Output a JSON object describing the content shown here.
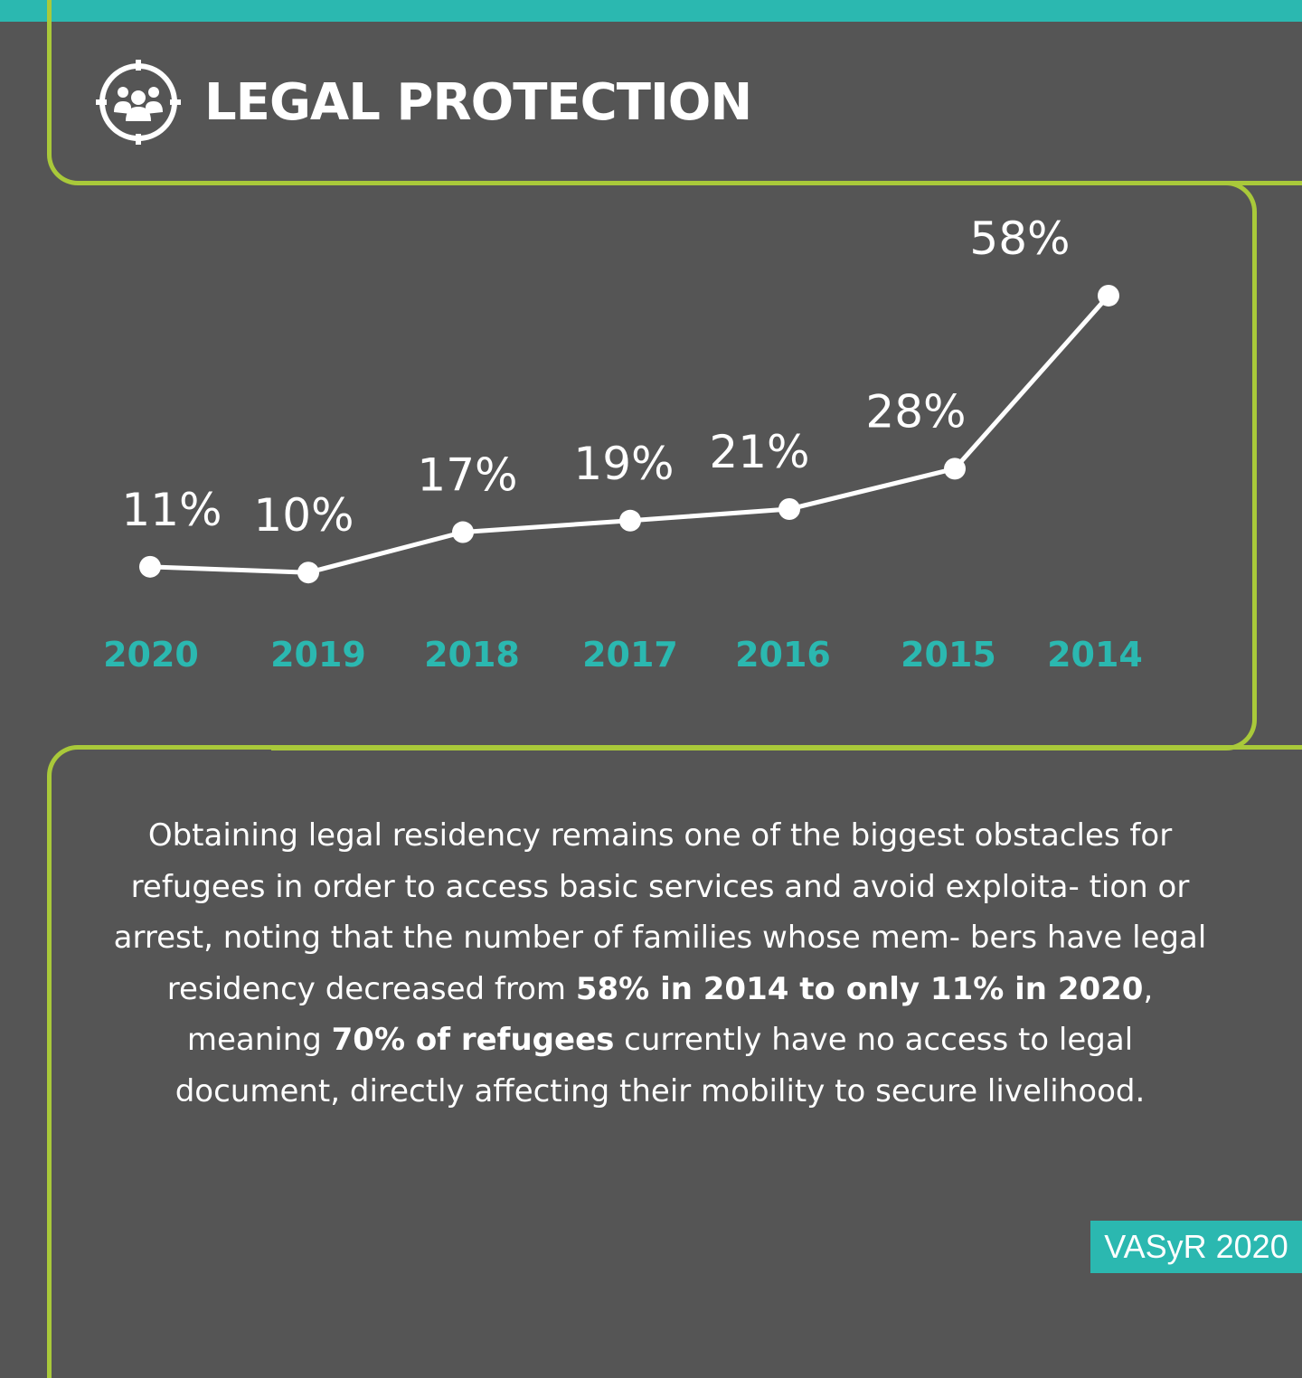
{
  "header": {
    "title": "LEGAL PROTECTION",
    "icon": "people-target-icon"
  },
  "chart_data": {
    "type": "line",
    "title": "",
    "xlabel": "",
    "ylabel": "",
    "categories": [
      "2020",
      "2019",
      "2018",
      "2017",
      "2016",
      "2015",
      "2014"
    ],
    "series": [
      {
        "values": [
          11,
          10,
          17,
          19,
          21,
          28,
          58
        ]
      }
    ],
    "value_labels": [
      "11%",
      "10%",
      "17%",
      "19%",
      "21%",
      "28%",
      "58%"
    ],
    "ylim": [
      0,
      60
    ],
    "grid": false,
    "colors": {
      "line": "#ffffff",
      "categories": "#2bb8b0"
    }
  },
  "body": {
    "p1": "Obtaining legal residency remains one of the biggest obstacles for refugees in order to access basic services and avoid exploita- tion or arrest, noting that the number of families whose mem- bers have legal residency decreased from ",
    "b1": "58% in 2014 to only 11% in 2020",
    "p2": ", meaning ",
    "b2": "70% of refugees",
    "p3": " currently have no access to legal document, directly affecting their mobility to secure livelihood."
  },
  "source": "VASyR 2020",
  "colors": {
    "background": "#555555",
    "accent_teal": "#2bb8b0",
    "frame_green": "#a9c93a"
  }
}
